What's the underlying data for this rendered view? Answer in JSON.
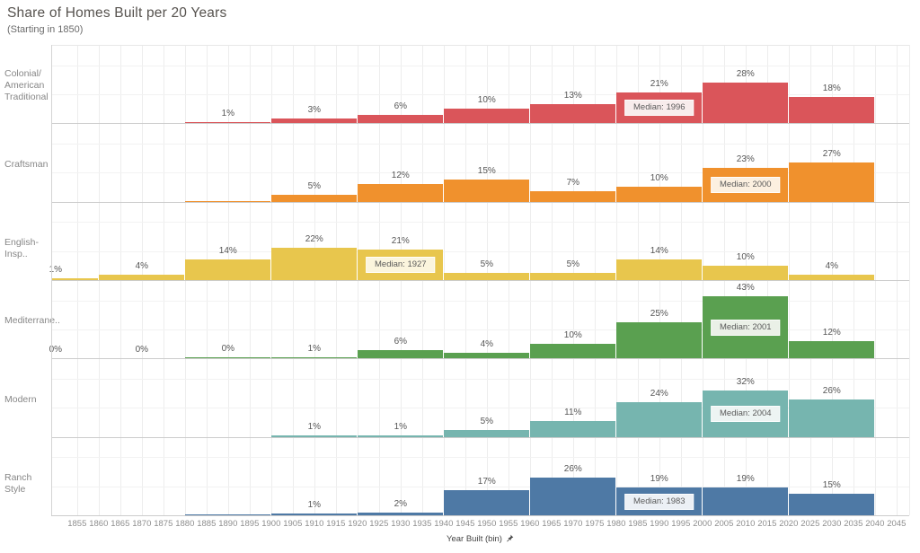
{
  "header": {
    "title": "Share of Homes Built per 20 Years",
    "subtitle": "(Starting in 1850)"
  },
  "chart_data": {
    "type": "bar",
    "variant": "small-multiples histogram, one panel per home style, 20-year bins",
    "title": "Share of Homes Built per 20 Years",
    "subtitle": "(Starting in 1850)",
    "xlabel": "Year Built (bin)",
    "x_axis": {
      "bin_width_years": 20,
      "grid": true,
      "tick_labels": [
        1855,
        1860,
        1865,
        1870,
        1875,
        1880,
        1885,
        1890,
        1895,
        1900,
        1905,
        1910,
        1915,
        1920,
        1925,
        1930,
        1935,
        1940,
        1945,
        1950,
        1955,
        1960,
        1965,
        1970,
        1975,
        1980,
        1985,
        1990,
        1995,
        2000,
        2005,
        2010,
        2015,
        2020,
        2025,
        2030,
        2035,
        2040,
        2045
      ]
    },
    "y_axis": {
      "unit": "percent of homes of that style",
      "labels_shown": false,
      "gridline_pcts": [
        20,
        40
      ],
      "panel_max_pct": 53
    },
    "legend": "none",
    "panels": [
      {
        "category": "Colonial/American Traditional",
        "label_lines": [
          "Colonial/",
          "American",
          "Traditional"
        ],
        "color": "#DA555A",
        "median_tint": "#f8ecec",
        "median": {
          "text": "Median: 1996",
          "bin_start_year": 1980
        },
        "bars": [
          {
            "start_year": 1880,
            "end_year": 1900,
            "pct": 1,
            "label": "1%"
          },
          {
            "start_year": 1900,
            "end_year": 1920,
            "pct": 3,
            "label": "3%"
          },
          {
            "start_year": 1920,
            "end_year": 1940,
            "pct": 6,
            "label": "6%"
          },
          {
            "start_year": 1940,
            "end_year": 1960,
            "pct": 10,
            "label": "10%"
          },
          {
            "start_year": 1960,
            "end_year": 1980,
            "pct": 13,
            "label": "13%"
          },
          {
            "start_year": 1980,
            "end_year": 2000,
            "pct": 21,
            "label": "21%"
          },
          {
            "start_year": 2000,
            "end_year": 2020,
            "pct": 28,
            "label": "28%"
          },
          {
            "start_year": 2020,
            "end_year": 2040,
            "pct": 18,
            "label": "18%"
          }
        ]
      },
      {
        "category": "Craftsman",
        "label_lines": [
          "Craftsman"
        ],
        "color": "#F0912D",
        "median_tint": "#fcf0e0",
        "median": {
          "text": "Median: 2000",
          "bin_start_year": 2000
        },
        "bars": [
          {
            "start_year": 1880,
            "end_year": 1900,
            "pct": 0,
            "label": "",
            "bar_visible": true
          },
          {
            "start_year": 1900,
            "end_year": 1920,
            "pct": 5,
            "label": "5%"
          },
          {
            "start_year": 1920,
            "end_year": 1940,
            "pct": 12,
            "label": "12%"
          },
          {
            "start_year": 1940,
            "end_year": 1960,
            "pct": 15,
            "label": "15%"
          },
          {
            "start_year": 1960,
            "end_year": 1980,
            "pct": 7,
            "label": "7%"
          },
          {
            "start_year": 1980,
            "end_year": 2000,
            "pct": 10,
            "label": "10%"
          },
          {
            "start_year": 2000,
            "end_year": 2020,
            "pct": 23,
            "label": "23%"
          },
          {
            "start_year": 2020,
            "end_year": 2040,
            "pct": 27,
            "label": "27%"
          }
        ]
      },
      {
        "category": "English-Insp..",
        "label_lines": [
          "English-Insp.."
        ],
        "color": "#E8C64D",
        "median_tint": "#fbf5dd",
        "median": {
          "text": "Median: 1927",
          "bin_start_year": 1920
        },
        "bars": [
          {
            "start_year": 1840,
            "end_year": 1860,
            "pct": 1,
            "label": "1%"
          },
          {
            "start_year": 1860,
            "end_year": 1880,
            "pct": 4,
            "label": "4%"
          },
          {
            "start_year": 1880,
            "end_year": 1900,
            "pct": 14,
            "label": "14%"
          },
          {
            "start_year": 1900,
            "end_year": 1920,
            "pct": 22,
            "label": "22%"
          },
          {
            "start_year": 1920,
            "end_year": 1940,
            "pct": 21,
            "label": "21%"
          },
          {
            "start_year": 1940,
            "end_year": 1960,
            "pct": 5,
            "label": "5%"
          },
          {
            "start_year": 1960,
            "end_year": 1980,
            "pct": 5,
            "label": "5%"
          },
          {
            "start_year": 1980,
            "end_year": 2000,
            "pct": 14,
            "label": "14%"
          },
          {
            "start_year": 2000,
            "end_year": 2020,
            "pct": 10,
            "label": "10%"
          },
          {
            "start_year": 2020,
            "end_year": 2040,
            "pct": 4,
            "label": "4%"
          }
        ]
      },
      {
        "category": "Mediterrane..",
        "label_lines": [
          "Mediterrane.."
        ],
        "color": "#5AA050",
        "median_tint": "#eaf0e7",
        "median": {
          "text": "Median: 2001",
          "bin_start_year": 2000
        },
        "bars": [
          {
            "start_year": 1840,
            "end_year": 1860,
            "pct": 0,
            "label": "0%",
            "bar_visible": false
          },
          {
            "start_year": 1860,
            "end_year": 1880,
            "pct": 0,
            "label": "0%",
            "bar_visible": false
          },
          {
            "start_year": 1880,
            "end_year": 1900,
            "pct": 0,
            "label": "0%",
            "bar_visible": true
          },
          {
            "start_year": 1900,
            "end_year": 1920,
            "pct": 1,
            "label": "1%"
          },
          {
            "start_year": 1920,
            "end_year": 1940,
            "pct": 6,
            "label": "6%"
          },
          {
            "start_year": 1940,
            "end_year": 1960,
            "pct": 4,
            "label": "4%"
          },
          {
            "start_year": 1960,
            "end_year": 1980,
            "pct": 10,
            "label": "10%"
          },
          {
            "start_year": 1980,
            "end_year": 2000,
            "pct": 25,
            "label": "25%"
          },
          {
            "start_year": 2000,
            "end_year": 2020,
            "pct": 43,
            "label": "43%"
          },
          {
            "start_year": 2020,
            "end_year": 2040,
            "pct": 12,
            "label": "12%"
          }
        ]
      },
      {
        "category": "Modern",
        "label_lines": [
          "Modern"
        ],
        "color": "#76B5AF",
        "median_tint": "#edf4f3",
        "median": {
          "text": "Median: 2004",
          "bin_start_year": 2000
        },
        "bars": [
          {
            "start_year": 1900,
            "end_year": 1920,
            "pct": 1,
            "label": "1%"
          },
          {
            "start_year": 1920,
            "end_year": 1940,
            "pct": 1,
            "label": "1%"
          },
          {
            "start_year": 1940,
            "end_year": 1960,
            "pct": 5,
            "label": "5%"
          },
          {
            "start_year": 1960,
            "end_year": 1980,
            "pct": 11,
            "label": "11%"
          },
          {
            "start_year": 1980,
            "end_year": 2000,
            "pct": 24,
            "label": "24%"
          },
          {
            "start_year": 2000,
            "end_year": 2020,
            "pct": 32,
            "label": "32%"
          },
          {
            "start_year": 2020,
            "end_year": 2040,
            "pct": 26,
            "label": "26%"
          }
        ]
      },
      {
        "category": "Ranch Style",
        "label_lines": [
          "Ranch Style"
        ],
        "color": "#4E79A5",
        "median_tint": "#ecf0f5",
        "median": {
          "text": "Median: 1983",
          "bin_start_year": 1980
        },
        "bars": [
          {
            "start_year": 1880,
            "end_year": 1900,
            "pct": 0,
            "label": "",
            "bar_visible": true
          },
          {
            "start_year": 1900,
            "end_year": 1920,
            "pct": 1,
            "label": "1%"
          },
          {
            "start_year": 1920,
            "end_year": 1940,
            "pct": 2,
            "label": "2%"
          },
          {
            "start_year": 1940,
            "end_year": 1960,
            "pct": 17,
            "label": "17%"
          },
          {
            "start_year": 1960,
            "end_year": 1980,
            "pct": 26,
            "label": "26%"
          },
          {
            "start_year": 1980,
            "end_year": 2000,
            "pct": 19,
            "label": "19%"
          },
          {
            "start_year": 2000,
            "end_year": 2020,
            "pct": 19,
            "label": "19%"
          },
          {
            "start_year": 2020,
            "end_year": 2040,
            "pct": 15,
            "label": "15%"
          }
        ]
      }
    ]
  },
  "colors": {
    "axis_line": "#cccccc",
    "vertical_gridline": "#ededed",
    "pct_gridline": "#f2f2f2",
    "value_label_text": "#565656",
    "tick_text": "#8e8e8e",
    "row_label_text": "#878787",
    "title_text": "#56524e"
  }
}
